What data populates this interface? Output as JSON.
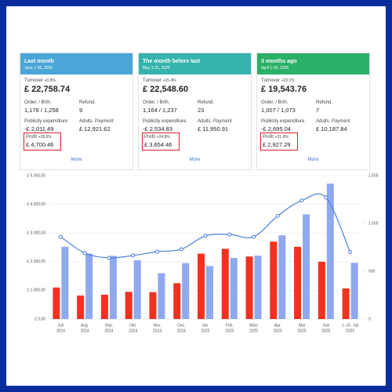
{
  "cards": [
    {
      "title": "Last month",
      "period": "June 1-30, 2025",
      "turnover_label": "Turnover",
      "turnover_change": "+0.9%",
      "turnover": "£ 22,758.74",
      "orders_label": "Order. / Brth.",
      "orders": "1,178 / 1,258",
      "refund_label": "Refund.",
      "refund": "9",
      "publicity_label": "Publicity expenditure",
      "publicity": "-£ 2,011.49",
      "payment_label": "Adults. Payment",
      "payment": "£ 12,921.62",
      "profit_label": "Profit",
      "profit_change": "+28.6%",
      "profit": "£ 4,700.46",
      "more": "More"
    },
    {
      "title": "The month before last",
      "period": "May 1-31, 2025",
      "turnover_label": "Turnover",
      "turnover_change": "+15.4%",
      "turnover": "£ 22,548.60",
      "orders_label": "Order. / Brth.",
      "orders": "1,164 / 1,237",
      "refund_label": "Refund.",
      "refund": "23",
      "publicity_label": "Publicity expenditure",
      "publicity": "-£ 2,534.83",
      "payment_label": "Adults. Payment",
      "payment": "£ 11,950.91",
      "profit_label": "Profit",
      "profit_change": "+24.8%",
      "profit": "£ 3,654.46",
      "more": "More"
    },
    {
      "title": "3 months ago",
      "period": "April 1-30, 2025",
      "turnover_label": "Turnover",
      "turnover_change": "+23.1%",
      "turnover": "£ 19,543.76",
      "orders_label": "Order. / Brth.",
      "orders": "1,007 / 1,073",
      "refund_label": "Refund.",
      "refund": "7",
      "publicity_label": "Publicity expenditure",
      "publicity": "-£ 2,695.04",
      "payment_label": "Adults. Payment",
      "payment": "£ 10,187.84",
      "profit_label": "Profit",
      "profit_change": "+31.9%",
      "profit": "£ 2,927.29",
      "more": "More"
    }
  ],
  "chart_data": {
    "type": "bar_line",
    "categories": [
      [
        "Juli",
        "2024"
      ],
      [
        "Aug.",
        "2024"
      ],
      [
        "Sep.",
        "2024"
      ],
      [
        "Okt.",
        "2024"
      ],
      [
        "Nov.",
        "2024"
      ],
      [
        "Dez.",
        "2024"
      ],
      [
        "Jan.",
        "2025"
      ],
      [
        "Feb.",
        "2025"
      ],
      [
        "März",
        "2025"
      ],
      [
        "Apr.",
        "2025"
      ],
      [
        "Mai",
        "2025"
      ],
      [
        "Juni",
        "2025"
      ],
      [
        "1.-15. Juli",
        "2025"
      ]
    ],
    "series": [
      {
        "type": "bar",
        "color": "#f2311f",
        "values": [
          1100,
          820,
          850,
          950,
          940,
          1250,
          2280,
          2450,
          2180,
          2700,
          2520,
          2000,
          1070
        ]
      },
      {
        "type": "bar",
        "color": "#8fa9f0",
        "values": [
          2520,
          2280,
          2200,
          2050,
          1600,
          1950,
          1850,
          2130,
          2210,
          2920,
          3650,
          4720,
          1960
        ]
      },
      {
        "type": "line",
        "axis": "y2",
        "color": "#4a7fe0",
        "values": [
          860,
          690,
          640,
          665,
          705,
          730,
          870,
          885,
          860,
          1080,
          1240,
          1270,
          700
        ]
      }
    ],
    "ylim": [
      0,
      5000
    ],
    "yticks": [
      {
        "value": 0,
        "label": "£ 0,00"
      },
      {
        "value": 1000,
        "label": "£ 1.000,00"
      },
      {
        "value": 2000,
        "label": "£ 2.000,00"
      },
      {
        "value": 3000,
        "label": "£ 3.000,00"
      },
      {
        "value": 4000,
        "label": "£ 4.000,00"
      },
      {
        "value": 5000,
        "label": "£ 5.000,00"
      }
    ],
    "y2lim": [
      0,
      1500
    ],
    "y2ticks": [
      0,
      500,
      {
        "value": 1000,
        "label": "1.000"
      },
      {
        "value": 1500,
        "label": "1.500"
      }
    ],
    "grid": true
  }
}
